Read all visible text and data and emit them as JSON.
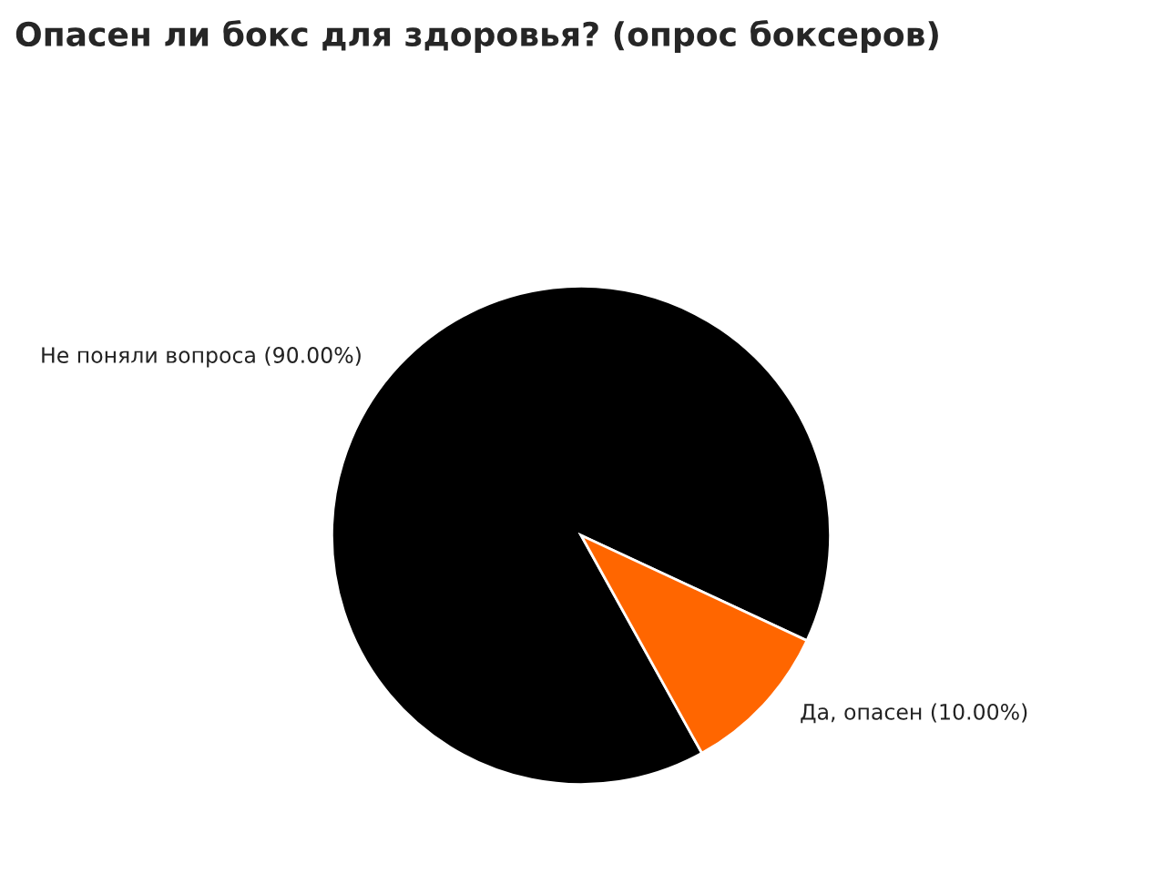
{
  "chart_data": {
    "type": "pie",
    "title": "Опасен ли бокс для здоровья? (опрос боксеров)",
    "categories": [
      "Не поняли вопроса",
      "Да, опасен"
    ],
    "values": [
      90,
      10
    ],
    "value_labels": [
      "(90.00%)",
      "(10.00%)"
    ],
    "colors": [
      "#000000",
      "#ff6600"
    ],
    "legend": false
  }
}
